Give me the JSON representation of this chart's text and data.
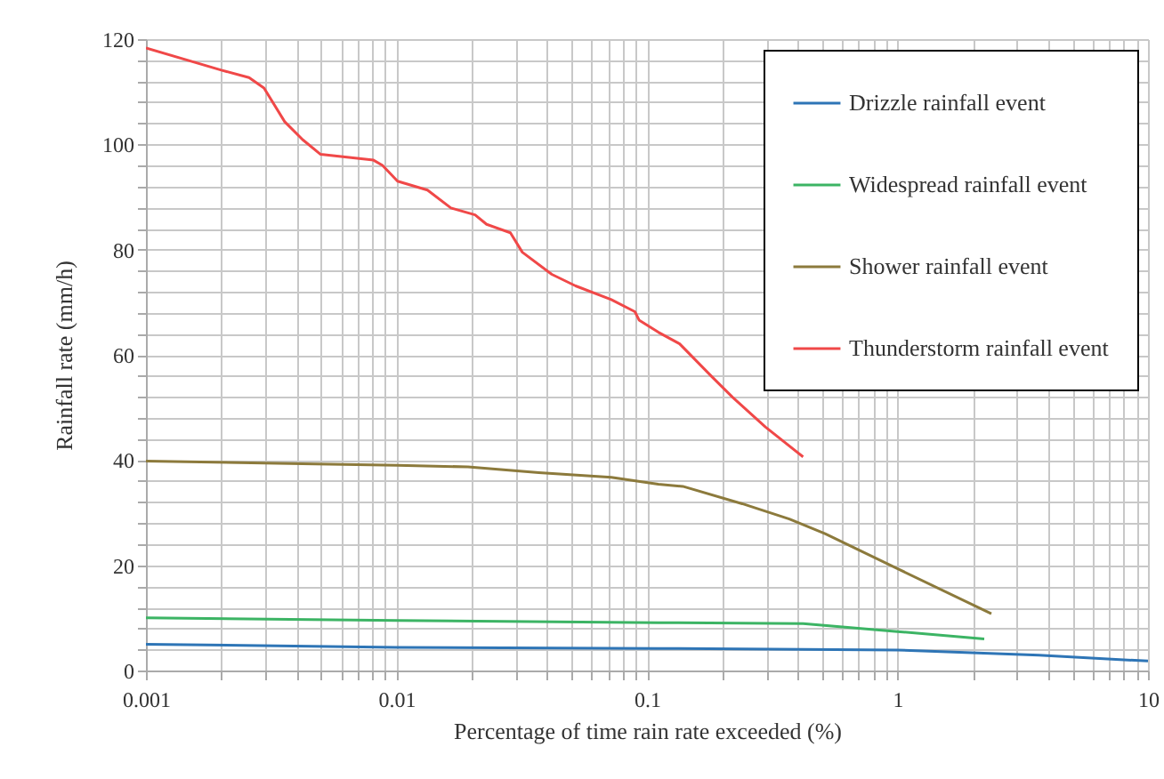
{
  "chart_data": {
    "type": "line",
    "xlabel": "Percentage of time rain rate exceeded (%)",
    "ylabel": "Rainfall rate (mm/h)",
    "log": "x",
    "grid": true,
    "legend": "top right",
    "xlim": [
      0.001,
      10
    ],
    "ylim": [
      0,
      120
    ],
    "xticks": [
      0.001,
      {
        "value": 0.002,
        "label": null
      },
      {
        "value": 0.003,
        "label": null
      },
      {
        "value": 0.004,
        "label": null
      },
      {
        "value": 0.005,
        "label": null
      },
      {
        "value": 0.006,
        "label": null
      },
      {
        "value": 0.007,
        "label": null
      },
      {
        "value": 0.008,
        "label": null
      },
      {
        "value": 0.009,
        "label": null
      },
      0.01,
      {
        "value": 0.02,
        "label": null
      },
      {
        "value": 0.03,
        "label": null
      },
      {
        "value": 0.04,
        "label": null
      },
      {
        "value": 0.05,
        "label": null
      },
      {
        "value": 0.06,
        "label": null
      },
      {
        "value": 0.07,
        "label": null
      },
      {
        "value": 0.08,
        "label": null
      },
      {
        "value": 0.09,
        "label": null
      },
      0.1,
      {
        "value": 0.2,
        "label": null
      },
      {
        "value": 0.3,
        "label": null
      },
      {
        "value": 0.4,
        "label": null
      },
      {
        "value": 0.5,
        "label": null
      },
      {
        "value": 0.6,
        "label": null
      },
      {
        "value": 0.7,
        "label": null
      },
      {
        "value": 0.8,
        "label": null
      },
      {
        "value": 0.9,
        "label": null
      },
      1,
      {
        "value": 2,
        "label": null
      },
      {
        "value": 3,
        "label": null
      },
      {
        "value": 4,
        "label": null
      },
      {
        "value": 5,
        "label": null
      },
      {
        "value": 6,
        "label": null
      },
      {
        "value": 7,
        "label": null
      },
      {
        "value": 8,
        "label": null
      },
      {
        "value": 9,
        "label": null
      },
      10
    ],
    "yticks": [
      0,
      {
        "value": 4,
        "label": null
      },
      {
        "value": 8,
        "label": null
      },
      {
        "value": 12,
        "label": null
      },
      {
        "value": 16,
        "label": null
      },
      20,
      {
        "value": 24,
        "label": null
      },
      {
        "value": 28,
        "label": null
      },
      {
        "value": 32,
        "label": null
      },
      {
        "value": 36,
        "label": null
      },
      40,
      {
        "value": 44,
        "label": null
      },
      {
        "value": 48,
        "label": null
      },
      {
        "value": 52,
        "label": null
      },
      {
        "value": 56,
        "label": null
      },
      60,
      {
        "value": 64,
        "label": null
      },
      {
        "value": 68,
        "label": null
      },
      {
        "value": 72,
        "label": null
      },
      {
        "value": 76,
        "label": null
      },
      80,
      {
        "value": 84,
        "label": null
      },
      {
        "value": 88,
        "label": null
      },
      {
        "value": 92,
        "label": null
      },
      {
        "value": 96,
        "label": null
      },
      100,
      {
        "value": 104,
        "label": null
      },
      {
        "value": 108,
        "label": null
      },
      {
        "value": 112,
        "label": null
      },
      {
        "value": 116,
        "label": null
      },
      120
    ],
    "series": [
      {
        "name": "Drizzle rainfall event",
        "color": "#2e75b6",
        "x": [
          0.001,
          0.01,
          0.11,
          1.0,
          3.67,
          10
        ],
        "values": [
          5.0,
          4.4,
          4.2,
          3.9,
          2.9,
          1.8
        ]
      },
      {
        "name": "Widespread rainfall event",
        "color": "#3cb464",
        "x": [
          0.001,
          0.0101,
          0.111,
          0.42,
          1.0,
          2.22
        ],
        "values": [
          10.0,
          9.5,
          9.1,
          8.9,
          7.4,
          6.0
        ]
      },
      {
        "name": "Shower rainfall event",
        "color": "#8c7a3c",
        "x": [
          0.001,
          0.0042,
          0.0101,
          0.0193,
          0.037,
          0.072,
          0.111,
          0.139,
          0.24,
          0.37,
          0.514,
          0.986,
          2.37
        ],
        "values": [
          39.8,
          39.3,
          39.0,
          38.7,
          37.6,
          36.7,
          35.4,
          35.0,
          31.7,
          28.8,
          26.0,
          19.5,
          10.8
        ]
      },
      {
        "name": "Thunderstorm rainfall event",
        "color": "#f04848",
        "x": [
          0.001,
          0.002,
          0.00258,
          0.00296,
          0.00358,
          0.00422,
          0.00498,
          0.0081,
          0.0088,
          0.0101,
          0.0133,
          0.0165,
          0.0206,
          0.0229,
          0.0285,
          0.0318,
          0.0417,
          0.0519,
          0.072,
          0.0895,
          0.093,
          0.111,
          0.135,
          0.182,
          0.22,
          0.297,
          0.42
        ],
        "values": [
          118.3,
          114.1,
          112.7,
          110.7,
          104.3,
          100.9,
          98.1,
          97.0,
          96.0,
          93.0,
          91.3,
          87.9,
          86.6,
          84.8,
          83.2,
          79.5,
          75.3,
          73.1,
          70.5,
          68.2,
          66.6,
          64.3,
          62.1,
          55.8,
          51.9,
          46.3,
          40.6
        ]
      }
    ]
  }
}
